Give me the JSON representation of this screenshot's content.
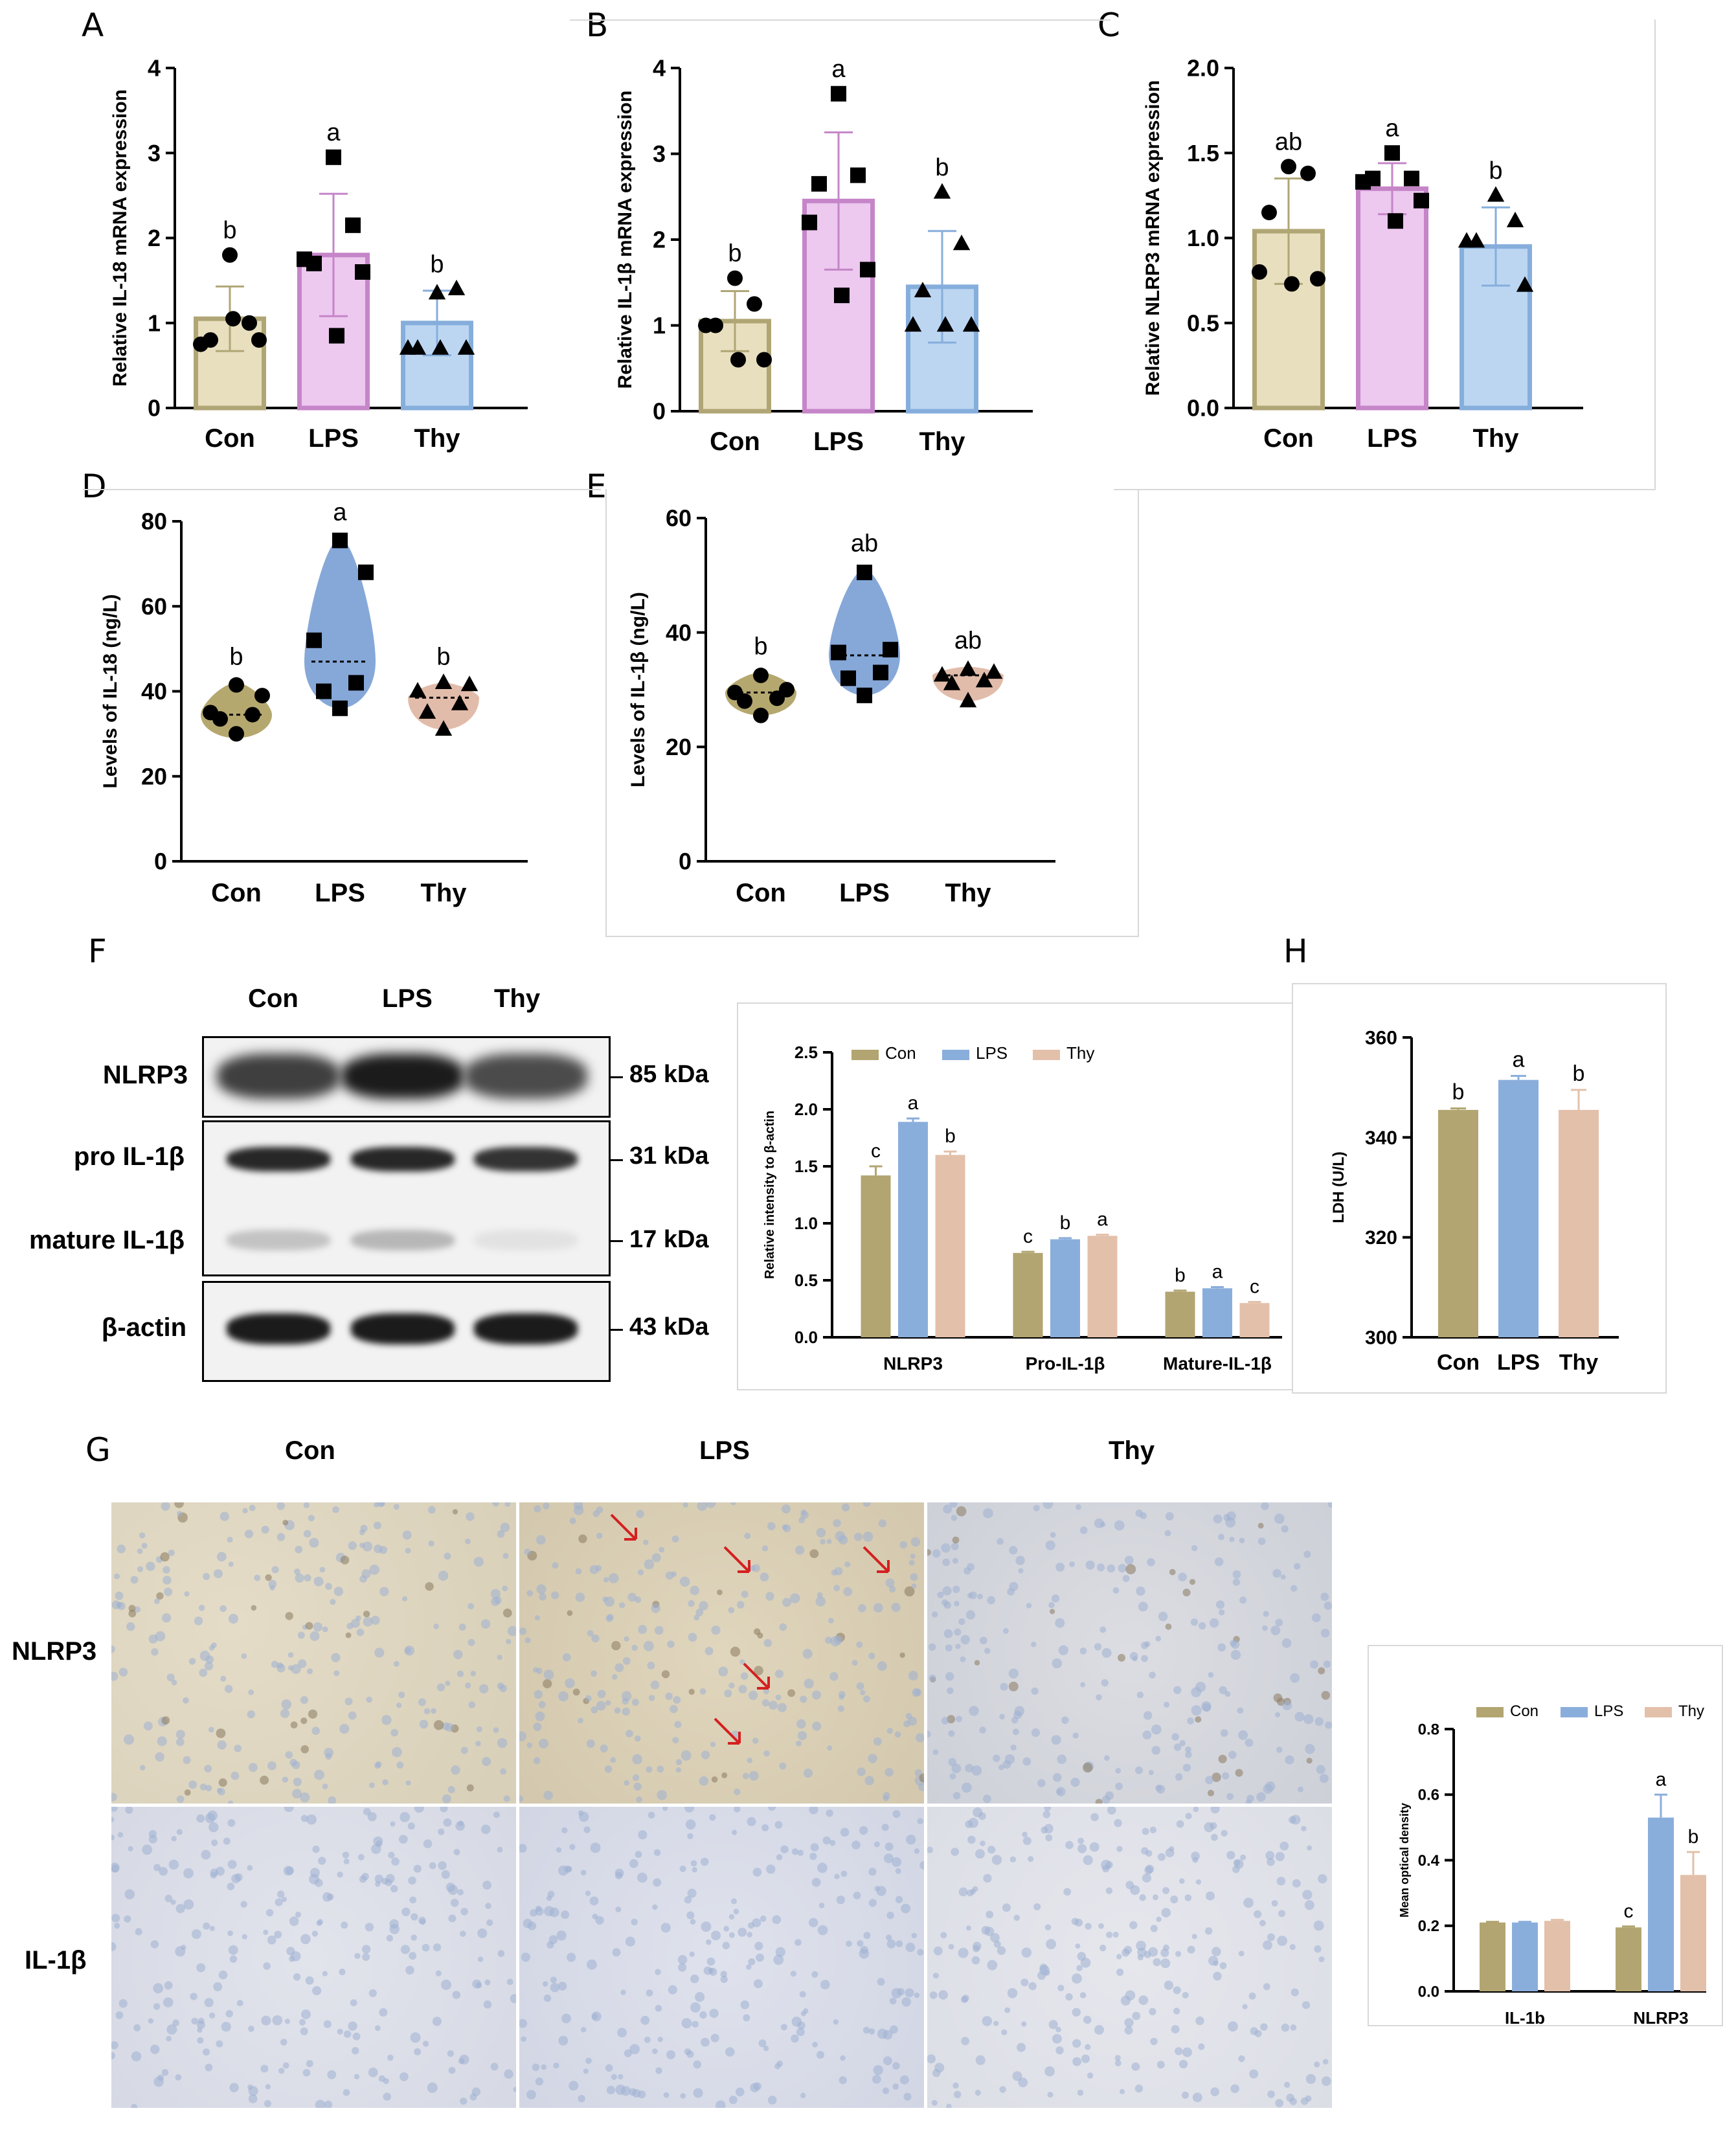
{
  "colors": {
    "con": "#e8dfbf",
    "con_stroke": "#b0a675",
    "lps": "#edc8ef",
    "lps_stroke": "#c585c8",
    "thy": "#bcd6f2",
    "thy_stroke": "#86aedc",
    "violin_con": "#b5a86f",
    "violin_lps": "#86a8d8",
    "violin_thy": "#e2bcaa",
    "bar_con": "#b2a571",
    "bar_lps": "#8aaedc",
    "bar_thy": "#e3c0aa",
    "arrow": "#d42020"
  },
  "panels": {
    "A": "A",
    "B": "B",
    "C": "C",
    "D": "D",
    "E": "E",
    "F": "F",
    "G": "G",
    "H": "H"
  },
  "chart_data": [
    {
      "id": "A",
      "type": "bar",
      "ylabel": "Relative IL-18 mRNA expression",
      "categories": [
        "Con",
        "LPS",
        "Thy"
      ],
      "ylim": [
        0,
        4
      ],
      "yticks": [
        "0",
        "1",
        "2",
        "3",
        "4"
      ],
      "values": [
        1.05,
        1.8,
        1.0
      ],
      "errors": [
        0.38,
        0.72,
        0.38
      ],
      "letters": [
        "b",
        "a",
        "b"
      ],
      "points": [
        [
          1.8,
          1.0,
          0.8,
          0.75,
          0.8,
          1.05
        ],
        [
          2.95,
          2.15,
          1.7,
          1.75,
          1.6,
          0.85
        ],
        [
          1.35,
          1.4,
          0.7,
          0.7,
          0.7,
          0.7
        ]
      ],
      "markers": [
        "circle",
        "square",
        "triangle"
      ]
    },
    {
      "id": "B",
      "type": "bar",
      "ylabel": "Relative IL-1β mRNA expression",
      "categories": [
        "Con",
        "LPS",
        "Thy"
      ],
      "ylim": [
        0,
        4
      ],
      "yticks": [
        "0",
        "1",
        "2",
        "3",
        "4"
      ],
      "values": [
        1.05,
        2.45,
        1.45
      ],
      "errors": [
        0.35,
        0.8,
        0.65
      ],
      "letters": [
        "b",
        "a",
        "b"
      ],
      "points": [
        [
          1.55,
          1.25,
          1.0,
          1.0,
          0.6,
          0.6
        ],
        [
          3.7,
          2.75,
          2.65,
          2.2,
          1.65,
          1.35
        ],
        [
          2.55,
          1.95,
          1.4,
          1.0,
          1.0,
          1.0
        ]
      ],
      "markers": [
        "circle",
        "square",
        "triangle"
      ]
    },
    {
      "id": "C",
      "type": "bar",
      "ylabel": "Relative NLRP3 mRNA expression",
      "categories": [
        "Con",
        "LPS",
        "Thy"
      ],
      "ylim": [
        0,
        2
      ],
      "yticks": [
        "0.0",
        "0.5",
        "1.0",
        "1.5",
        "2.0"
      ],
      "values": [
        1.04,
        1.29,
        0.95
      ],
      "errors": [
        0.31,
        0.15,
        0.23
      ],
      "letters": [
        "ab",
        "a",
        "b"
      ],
      "points": [
        [
          1.42,
          1.38,
          1.15,
          0.8,
          0.76,
          0.73
        ],
        [
          1.5,
          1.35,
          1.35,
          1.33,
          1.22,
          1.1
        ],
        [
          1.25,
          1.1,
          0.98,
          0.98,
          0.72
        ]
      ],
      "markers": [
        "circle",
        "square",
        "triangle"
      ]
    },
    {
      "id": "D",
      "type": "violin",
      "ylabel": "Levels of IL-18 (ng/L)",
      "categories": [
        "Con",
        "LPS",
        "Thy"
      ],
      "ylim": [
        0,
        80
      ],
      "yticks": [
        "0",
        "20",
        "40",
        "60",
        "80"
      ],
      "medians": [
        34.5,
        47,
        38.5
      ],
      "letters": [
        "b",
        "a",
        "b"
      ],
      "points": [
        [
          41.5,
          39,
          35,
          34.5,
          33.5,
          30
        ],
        [
          75.5,
          68,
          52,
          42,
          40,
          36
        ],
        [
          42,
          41.5,
          40,
          37,
          35,
          31
        ]
      ],
      "markers": [
        "circle",
        "square",
        "triangle"
      ],
      "ranges": [
        [
          29,
          42
        ],
        [
          36,
          76
        ],
        [
          31,
          42
        ]
      ]
    },
    {
      "id": "E",
      "type": "violin",
      "ylabel": "Levels of IL-1β (ng/L)",
      "categories": [
        "Con",
        "LPS",
        "Thy"
      ],
      "ylim": [
        0,
        60
      ],
      "yticks": [
        "0",
        "20",
        "40",
        "60"
      ],
      "medians": [
        29.5,
        36,
        32.5
      ],
      "letters": [
        "b",
        "ab",
        "ab"
      ],
      "points": [
        [
          32.5,
          30,
          29.5,
          28.5,
          28,
          25.5
        ],
        [
          50.5,
          37,
          36.5,
          33,
          32,
          29
        ],
        [
          33.5,
          33,
          32.5,
          31.5,
          31,
          28
        ]
      ],
      "markers": [
        "circle",
        "square",
        "triangle"
      ],
      "ranges": [
        [
          25.5,
          33
        ],
        [
          29,
          51
        ],
        [
          28,
          34
        ]
      ]
    },
    {
      "id": "F2",
      "type": "bar",
      "ylabel": "Relative intensity to β-actin",
      "legend": [
        "Con",
        "LPS",
        "Thy"
      ],
      "categories": [
        "NLRP3",
        "Pro-IL-1β",
        "Mature-IL-1β"
      ],
      "ylim": [
        0,
        2.5
      ],
      "yticks": [
        "0.0",
        "0.5",
        "1.0",
        "1.5",
        "2.0",
        "2.5"
      ],
      "series": [
        {
          "name": "Con",
          "values": [
            1.42,
            0.74,
            0.4
          ],
          "errors": [
            0.08,
            0.01,
            0.01
          ],
          "letters": [
            "c",
            "c",
            "b"
          ]
        },
        {
          "name": "LPS",
          "values": [
            1.89,
            0.86,
            0.43
          ],
          "errors": [
            0.03,
            0.01,
            0.01
          ],
          "letters": [
            "a",
            "b",
            "a"
          ]
        },
        {
          "name": "Thy",
          "values": [
            1.6,
            0.89,
            0.3
          ],
          "errors": [
            0.03,
            0.01,
            0.01
          ],
          "letters": [
            "b",
            "a",
            "c"
          ]
        }
      ]
    },
    {
      "id": "H",
      "type": "bar",
      "ylabel": "LDH (U/L)",
      "categories": [
        "Con",
        "LPS",
        "Thy"
      ],
      "ylim": [
        300,
        360
      ],
      "yticks": [
        "300",
        "320",
        "340",
        "360"
      ],
      "values": [
        345.5,
        351.5,
        345.5
      ],
      "errors": [
        0.3,
        0.8,
        4
      ],
      "letters": [
        "b",
        "a",
        "b"
      ]
    },
    {
      "id": "G2",
      "type": "bar",
      "ylabel": "Mean optical density",
      "legend": [
        "Con",
        "LPS",
        "Thy"
      ],
      "categories": [
        "IL-1b",
        "NLRP3"
      ],
      "ylim": [
        0,
        0.8
      ],
      "yticks": [
        "0.0",
        "0.2",
        "0.4",
        "0.6",
        "0.8"
      ],
      "series": [
        {
          "name": "Con",
          "values": [
            0.21,
            0.195
          ],
          "errors": [
            0.002,
            0.003
          ],
          "letters": [
            "",
            "c"
          ]
        },
        {
          "name": "LPS",
          "values": [
            0.21,
            0.53
          ],
          "errors": [
            0.002,
            0.07
          ],
          "letters": [
            "",
            "a"
          ]
        },
        {
          "name": "Thy",
          "values": [
            0.215,
            0.355
          ],
          "errors": [
            0.003,
            0.07
          ],
          "letters": [
            "",
            "b"
          ]
        }
      ]
    }
  ],
  "blot": {
    "lanes": [
      "Con",
      "LPS",
      "Thy"
    ],
    "rows": [
      {
        "label": "NLRP3",
        "kda": "85 kDa",
        "intensity": [
          0.8,
          0.95,
          0.75
        ]
      },
      {
        "label": "pro IL-1β",
        "kda": "31 kDa",
        "intensity": [
          0.9,
          0.9,
          0.85
        ]
      },
      {
        "label": "mature IL-1β",
        "kda": "17 kDa",
        "intensity": [
          0.25,
          0.3,
          0.12
        ]
      },
      {
        "label": "β-actin",
        "kda": "43 kDa",
        "intensity": [
          0.95,
          0.95,
          0.95
        ]
      }
    ]
  },
  "ihc": {
    "columns": [
      "Con",
      "LPS",
      "Thy"
    ],
    "rows": [
      "NLRP3",
      "IL-1β"
    ]
  }
}
